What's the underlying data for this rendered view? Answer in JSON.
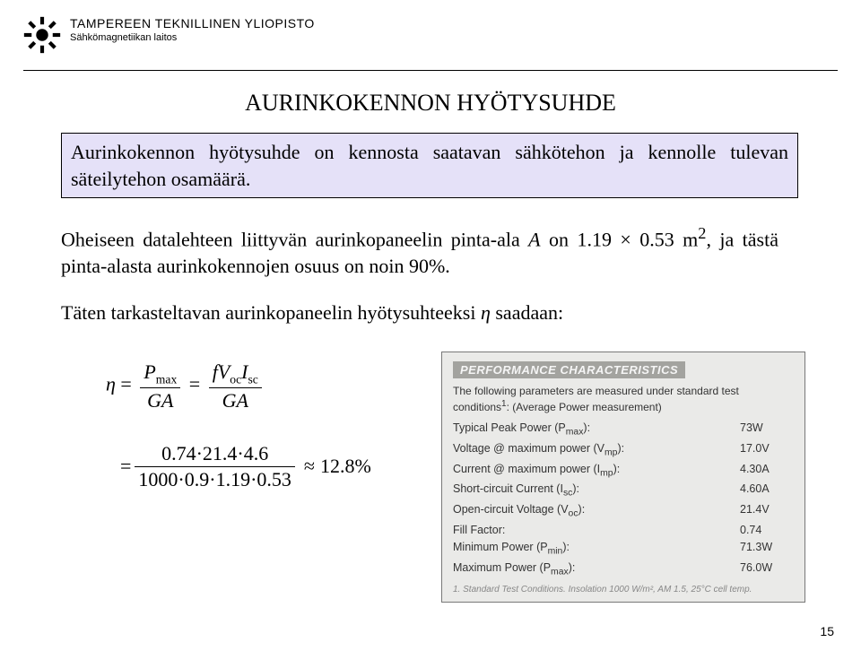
{
  "header": {
    "org": "TAMPEREEN TEKNILLINEN YLIOPISTO",
    "dept": "Sähkömagnetiikan laitos"
  },
  "title": "AURINKOKENNON HYÖTYSUHDE",
  "definition": "Aurinkokennon hyötysuhde on kennosta saatavan sähkötehon ja kennolle tulevan säteilytehon osamäärä.",
  "body_html": "Oheiseen datalehteen liittyvän aurinkopaneelin pinta-ala <span class=\"ital\">A</span> on 1.19 × 0.53 m<sup>2</sup>, ja tästä pinta-alasta aurinkokennojen osuus on noin 90%.",
  "eta_html": "Täten tarkasteltavan aurinkopaneelin hyötysuhteeksi <span class=\"ital\">η</span>  saadaan:",
  "formula": {
    "eta": "η",
    "pmax_html": "<span class=\"ital\">P</span><span class=\"sub\">max</span>",
    "ga_html": "<span class=\"ital\">GA</span>",
    "num2_html": "<span class=\"ital\">fV</span><span class=\"sub\">oc</span><span class=\"ital\">I</span><span class=\"sub\">sc</span>",
    "row2_num": "0.74·21.4·4.6",
    "row2_den": "1000·0.9·1.19·0.53",
    "result": "12.8%"
  },
  "perf": {
    "title": "PERFORMANCE CHARACTERISTICS",
    "note_html": "The following parameters are measured under standard test conditions<sup>1</sup>: (Average Power measurement)",
    "rows": [
      {
        "k": "Typical Peak Power (P<sub>max</sub>):",
        "v": "73W"
      },
      {
        "k": "Voltage @ maximum power (V<sub>mp</sub>):",
        "v": "17.0V"
      },
      {
        "k": "Current @ maximum power (I<sub>mp</sub>):",
        "v": "4.30A"
      },
      {
        "k": "Short-circuit Current (I<sub>sc</sub>):",
        "v": "4.60A"
      },
      {
        "k": "Open-circuit Voltage (V<sub>oc</sub>):",
        "v": "21.4V"
      },
      {
        "k": "Fill Factor:",
        "v": "0.74"
      },
      {
        "k": "Minimum Power (P<sub>min</sub>):",
        "v": "71.3W"
      },
      {
        "k": "Maximum Power (P<sub>max</sub>):",
        "v": "76.0W"
      }
    ],
    "foot": "1. Standard Test Conditions. Insolation 1000 W/m², AM 1.5, 25°C cell temp."
  },
  "page": "15"
}
